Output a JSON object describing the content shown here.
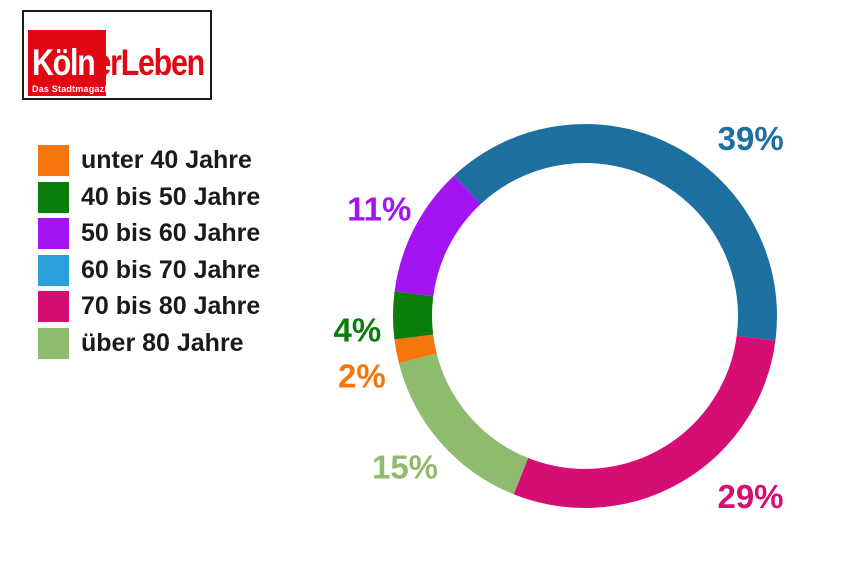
{
  "logo": {
    "title_white": "Köln",
    "title_red": "erLeben",
    "subtitle": "Das Stadtmagazin",
    "brand_red": "#e30613",
    "border_color": "#1d1d1b"
  },
  "chart_data": {
    "type": "donut",
    "title": "",
    "unit": "%",
    "legend_position": "left",
    "start_angle_deg": -43,
    "legend": [
      {
        "label": "unter 40 Jahre",
        "color": "#f7750d"
      },
      {
        "label": "40 bis 50 Jahre",
        "color": "#0a7d0a"
      },
      {
        "label": "50 bis 60 Jahre",
        "color": "#a413f2"
      },
      {
        "label": "60 bis 70 Jahre",
        "color": "#2b9fd9"
      },
      {
        "label": "70 bis 80 Jahre",
        "color": "#d60d73"
      },
      {
        "label": "über 80 Jahre",
        "color": "#8ebb6e"
      }
    ],
    "segments": [
      {
        "label": "60 bis 70 Jahre",
        "value": 39,
        "pct_label": "39%",
        "color": "#1c6f9e",
        "label_angle": 43,
        "label_r": 243
      },
      {
        "label": "70 bis 80 Jahre",
        "value": 29,
        "pct_label": "29%",
        "color": "#d60d73",
        "label_angle": 137.5,
        "label_r": 245
      },
      {
        "label": "über 80 Jahre",
        "value": 15,
        "pct_label": "15%",
        "color": "#8ebb6e",
        "label_angle": 230,
        "label_r": 235
      },
      {
        "label": "unter 40 Jahre",
        "value": 2,
        "pct_label": "2%",
        "color": "#f7750d",
        "label_angle": 255,
        "label_r": 231
      },
      {
        "label": "40 bis 50 Jahre",
        "value": 4,
        "pct_label": "4%",
        "color": "#0a7d0a",
        "label_angle": 266.5,
        "label_r": 228
      },
      {
        "label": "50 bis 60 Jahre",
        "value": 11,
        "pct_label": "11%",
        "color": "#a413f2",
        "label_angle": 297.5,
        "label_r": 232
      }
    ]
  }
}
